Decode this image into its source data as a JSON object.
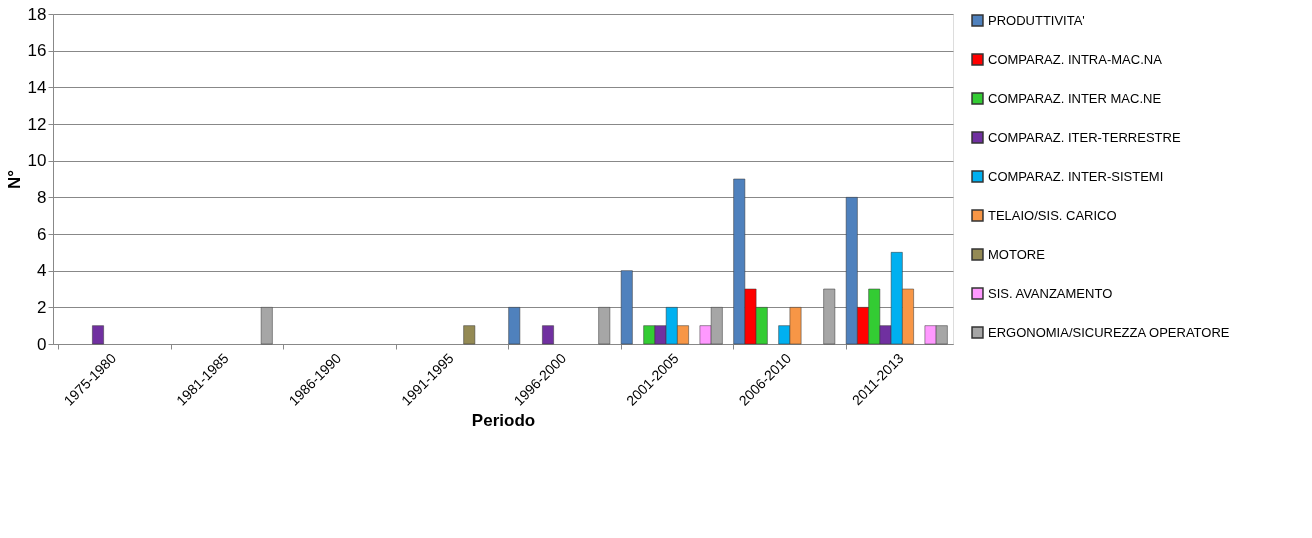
{
  "chart_data": {
    "type": "bar",
    "xlabel": "Periodo",
    "ylabel": "N°",
    "categories": [
      "1975-1980",
      "1981-1985",
      "1986-1990",
      "1991-1995",
      "1996-2000",
      "2001-2005",
      "2006-2010",
      "2011-2013"
    ],
    "series": [
      {
        "name": "PRODUTTIVITA'",
        "color": "#4f81bd",
        "values": [
          null,
          null,
          null,
          null,
          2,
          4,
          9,
          8
        ]
      },
      {
        "name": "COMPARAZ. INTRA-MAC.NA",
        "color": "#ff0000",
        "values": [
          null,
          null,
          null,
          null,
          null,
          null,
          3,
          2
        ]
      },
      {
        "name": "COMPARAZ. INTER MAC.NE",
        "color": "#33cc33",
        "values": [
          null,
          null,
          null,
          null,
          null,
          1,
          2,
          3
        ]
      },
      {
        "name": "COMPARAZ. ITER-TERRESTRE",
        "color": "#7030a0",
        "values": [
          1,
          null,
          null,
          null,
          1,
          1,
          null,
          1
        ]
      },
      {
        "name": "COMPARAZ. INTER-SISTEMI",
        "color": "#00b0f0",
        "values": [
          null,
          null,
          null,
          null,
          null,
          2,
          1,
          5
        ]
      },
      {
        "name": "TELAIO/SIS. CARICO",
        "color": "#f79646",
        "values": [
          null,
          null,
          null,
          null,
          null,
          1,
          2,
          3
        ]
      },
      {
        "name": "MOTORE",
        "color": "#948a54",
        "values": [
          null,
          null,
          null,
          1,
          null,
          null,
          null,
          null
        ]
      },
      {
        "name": "SIS. AVANZAMENTO",
        "color": "#ff99ff",
        "values": [
          null,
          null,
          null,
          null,
          null,
          1,
          null,
          1
        ]
      },
      {
        "name": "ERGONOMIA/SICUREZZA OPERATORE",
        "color": "#a6a6a6",
        "values": [
          null,
          2,
          null,
          null,
          2,
          2,
          3,
          1
        ]
      }
    ],
    "ylim": [
      0,
      18
    ],
    "yticks": [
      0,
      2,
      4,
      6,
      8,
      10,
      12,
      14,
      16,
      18
    ],
    "grid": "y",
    "legend": "right"
  }
}
